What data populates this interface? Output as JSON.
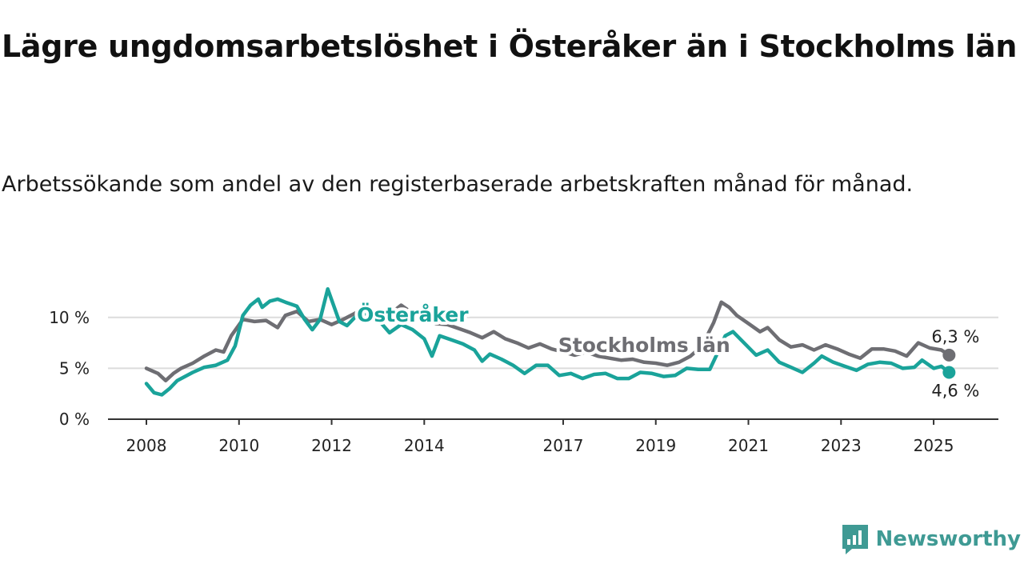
{
  "header": {
    "title": "Lägre ungdomsarbetslöshet i Österåker än i Stockholms län",
    "subtitle": "Arbetssökande som andel av den registerbaserade arbetskraften månad för månad."
  },
  "brand": {
    "name": "Newsworthy",
    "icon": "newsworthy-logo-icon",
    "color": "#3f9a94"
  },
  "chart_data": {
    "type": "line",
    "title": "Lägre ungdomsarbetslöshet i Österåker än i Stockholms län",
    "subtitle": "Arbetssökande som andel av den registerbaserade arbetskraften månad för månad.",
    "xlabel": "",
    "ylabel": "",
    "xlim": [
      "2008-01",
      "2025-12"
    ],
    "ylim": [
      0,
      12.5
    ],
    "x_ticks": [
      {
        "date": "2008-01",
        "label": "2008"
      },
      {
        "date": "2010-01",
        "label": "2010"
      },
      {
        "date": "2012-01",
        "label": "2012"
      },
      {
        "date": "2014-01",
        "label": "2014"
      },
      {
        "date": "2017-01",
        "label": "2017"
      },
      {
        "date": "2019-01",
        "label": "2019"
      },
      {
        "date": "2021-01",
        "label": "2021"
      },
      {
        "date": "2023-01",
        "label": "2023"
      },
      {
        "date": "2025-01",
        "label": "2025"
      }
    ],
    "y_ticks": [
      {
        "value": 0,
        "label": "0 %"
      },
      {
        "value": 5,
        "label": "5 %"
      },
      {
        "value": 10,
        "label": "10 %"
      }
    ],
    "grid": true,
    "legend": "inline labels",
    "series": [
      {
        "name": "Stockholms län",
        "color": "#6e6e73",
        "end_label": "6,3 %",
        "points": [
          {
            "x": "2008-01",
            "y": 5.0
          },
          {
            "x": "2008-04",
            "y": 4.5
          },
          {
            "x": "2008-06",
            "y": 3.8
          },
          {
            "x": "2008-08",
            "y": 4.5
          },
          {
            "x": "2008-10",
            "y": 5.0
          },
          {
            "x": "2009-01",
            "y": 5.5
          },
          {
            "x": "2009-04",
            "y": 6.2
          },
          {
            "x": "2009-07",
            "y": 6.8
          },
          {
            "x": "2009-09",
            "y": 6.6
          },
          {
            "x": "2009-11",
            "y": 8.2
          },
          {
            "x": "2010-02",
            "y": 9.8
          },
          {
            "x": "2010-05",
            "y": 9.6
          },
          {
            "x": "2010-08",
            "y": 9.7
          },
          {
            "x": "2010-11",
            "y": 9.0
          },
          {
            "x": "2011-01",
            "y": 10.2
          },
          {
            "x": "2011-04",
            "y": 10.6
          },
          {
            "x": "2011-07",
            "y": 9.6
          },
          {
            "x": "2011-10",
            "y": 9.8
          },
          {
            "x": "2012-01",
            "y": 9.3
          },
          {
            "x": "2012-04",
            "y": 9.8
          },
          {
            "x": "2012-07",
            "y": 10.4
          },
          {
            "x": "2012-10",
            "y": 11.1
          },
          {
            "x": "2013-01",
            "y": 10.4
          },
          {
            "x": "2013-04",
            "y": 10.3
          },
          {
            "x": "2013-07",
            "y": 11.2
          },
          {
            "x": "2013-10",
            "y": 10.4
          },
          {
            "x": "2014-01",
            "y": 10.0
          },
          {
            "x": "2014-04",
            "y": 9.4
          },
          {
            "x": "2014-07",
            "y": 9.3
          },
          {
            "x": "2014-10",
            "y": 8.9
          },
          {
            "x": "2015-01",
            "y": 8.5
          },
          {
            "x": "2015-04",
            "y": 8.0
          },
          {
            "x": "2015-07",
            "y": 8.6
          },
          {
            "x": "2015-10",
            "y": 7.9
          },
          {
            "x": "2016-01",
            "y": 7.5
          },
          {
            "x": "2016-04",
            "y": 7.0
          },
          {
            "x": "2016-07",
            "y": 7.4
          },
          {
            "x": "2016-10",
            "y": 6.9
          },
          {
            "x": "2017-01",
            "y": 6.6
          },
          {
            "x": "2017-04",
            "y": 6.3
          },
          {
            "x": "2017-07",
            "y": 6.6
          },
          {
            "x": "2017-10",
            "y": 6.2
          },
          {
            "x": "2018-01",
            "y": 6.0
          },
          {
            "x": "2018-04",
            "y": 5.8
          },
          {
            "x": "2018-07",
            "y": 5.9
          },
          {
            "x": "2018-10",
            "y": 5.6
          },
          {
            "x": "2019-01",
            "y": 5.5
          },
          {
            "x": "2019-04",
            "y": 5.3
          },
          {
            "x": "2019-07",
            "y": 5.6
          },
          {
            "x": "2019-10",
            "y": 6.2
          },
          {
            "x": "2020-01",
            "y": 7.2
          },
          {
            "x": "2020-04",
            "y": 9.5
          },
          {
            "x": "2020-06",
            "y": 11.5
          },
          {
            "x": "2020-08",
            "y": 11.0
          },
          {
            "x": "2020-10",
            "y": 10.2
          },
          {
            "x": "2021-01",
            "y": 9.4
          },
          {
            "x": "2021-04",
            "y": 8.6
          },
          {
            "x": "2021-06",
            "y": 9.0
          },
          {
            "x": "2021-09",
            "y": 7.8
          },
          {
            "x": "2021-12",
            "y": 7.1
          },
          {
            "x": "2022-03",
            "y": 7.3
          },
          {
            "x": "2022-06",
            "y": 6.8
          },
          {
            "x": "2022-09",
            "y": 7.3
          },
          {
            "x": "2022-12",
            "y": 6.9
          },
          {
            "x": "2023-03",
            "y": 6.4
          },
          {
            "x": "2023-06",
            "y": 6.0
          },
          {
            "x": "2023-09",
            "y": 6.9
          },
          {
            "x": "2023-12",
            "y": 6.9
          },
          {
            "x": "2024-03",
            "y": 6.7
          },
          {
            "x": "2024-06",
            "y": 6.2
          },
          {
            "x": "2024-09",
            "y": 7.5
          },
          {
            "x": "2024-12",
            "y": 7.0
          },
          {
            "x": "2025-03",
            "y": 6.8
          },
          {
            "x": "2025-05",
            "y": 6.3
          }
        ]
      },
      {
        "name": "Österåker",
        "color": "#1aa39a",
        "end_label": "4,6 %",
        "points": [
          {
            "x": "2008-01",
            "y": 3.5
          },
          {
            "x": "2008-03",
            "y": 2.6
          },
          {
            "x": "2008-05",
            "y": 2.4
          },
          {
            "x": "2008-07",
            "y": 3.0
          },
          {
            "x": "2008-09",
            "y": 3.8
          },
          {
            "x": "2009-01",
            "y": 4.6
          },
          {
            "x": "2009-04",
            "y": 5.1
          },
          {
            "x": "2009-07",
            "y": 5.3
          },
          {
            "x": "2009-10",
            "y": 5.8
          },
          {
            "x": "2009-12",
            "y": 7.2
          },
          {
            "x": "2010-02",
            "y": 10.2
          },
          {
            "x": "2010-04",
            "y": 11.2
          },
          {
            "x": "2010-06",
            "y": 11.8
          },
          {
            "x": "2010-07",
            "y": 11.0
          },
          {
            "x": "2010-09",
            "y": 11.6
          },
          {
            "x": "2010-11",
            "y": 11.8
          },
          {
            "x": "2011-01",
            "y": 11.5
          },
          {
            "x": "2011-04",
            "y": 11.1
          },
          {
            "x": "2011-06",
            "y": 9.8
          },
          {
            "x": "2011-08",
            "y": 8.8
          },
          {
            "x": "2011-10",
            "y": 9.8
          },
          {
            "x": "2011-12",
            "y": 12.8
          },
          {
            "x": "2012-03",
            "y": 9.6
          },
          {
            "x": "2012-05",
            "y": 9.2
          },
          {
            "x": "2012-07",
            "y": 10.0
          },
          {
            "x": "2012-10",
            "y": 10.4
          },
          {
            "x": "2013-01",
            "y": 9.8
          },
          {
            "x": "2013-04",
            "y": 8.5
          },
          {
            "x": "2013-07",
            "y": 9.3
          },
          {
            "x": "2013-10",
            "y": 8.8
          },
          {
            "x": "2014-01",
            "y": 7.9
          },
          {
            "x": "2014-03",
            "y": 6.2
          },
          {
            "x": "2014-05",
            "y": 8.2
          },
          {
            "x": "2014-08",
            "y": 7.8
          },
          {
            "x": "2014-11",
            "y": 7.4
          },
          {
            "x": "2015-02",
            "y": 6.8
          },
          {
            "x": "2015-04",
            "y": 5.7
          },
          {
            "x": "2015-06",
            "y": 6.4
          },
          {
            "x": "2015-09",
            "y": 5.9
          },
          {
            "x": "2015-12",
            "y": 5.3
          },
          {
            "x": "2016-03",
            "y": 4.5
          },
          {
            "x": "2016-06",
            "y": 5.3
          },
          {
            "x": "2016-09",
            "y": 5.3
          },
          {
            "x": "2016-12",
            "y": 4.3
          },
          {
            "x": "2017-03",
            "y": 4.5
          },
          {
            "x": "2017-06",
            "y": 4.0
          },
          {
            "x": "2017-09",
            "y": 4.4
          },
          {
            "x": "2017-12",
            "y": 4.5
          },
          {
            "x": "2018-03",
            "y": 4.0
          },
          {
            "x": "2018-06",
            "y": 4.0
          },
          {
            "x": "2018-09",
            "y": 4.6
          },
          {
            "x": "2018-12",
            "y": 4.5
          },
          {
            "x": "2019-03",
            "y": 4.2
          },
          {
            "x": "2019-06",
            "y": 4.3
          },
          {
            "x": "2019-09",
            "y": 5.0
          },
          {
            "x": "2019-12",
            "y": 4.9
          },
          {
            "x": "2020-03",
            "y": 4.9
          },
          {
            "x": "2020-05",
            "y": 6.5
          },
          {
            "x": "2020-07",
            "y": 8.2
          },
          {
            "x": "2020-09",
            "y": 8.6
          },
          {
            "x": "2021-03",
            "y": 6.3
          },
          {
            "x": "2021-06",
            "y": 6.8
          },
          {
            "x": "2021-09",
            "y": 5.6
          },
          {
            "x": "2021-12",
            "y": 5.1
          },
          {
            "x": "2022-03",
            "y": 4.6
          },
          {
            "x": "2022-06",
            "y": 5.5
          },
          {
            "x": "2022-08",
            "y": 6.2
          },
          {
            "x": "2022-11",
            "y": 5.6
          },
          {
            "x": "2023-02",
            "y": 5.2
          },
          {
            "x": "2023-05",
            "y": 4.8
          },
          {
            "x": "2023-08",
            "y": 5.4
          },
          {
            "x": "2023-11",
            "y": 5.6
          },
          {
            "x": "2024-02",
            "y": 5.5
          },
          {
            "x": "2024-05",
            "y": 5.0
          },
          {
            "x": "2024-08",
            "y": 5.1
          },
          {
            "x": "2024-10",
            "y": 5.8
          },
          {
            "x": "2025-01",
            "y": 5.0
          },
          {
            "x": "2025-03",
            "y": 5.2
          },
          {
            "x": "2025-05",
            "y": 4.6
          }
        ]
      }
    ],
    "annotations": [
      {
        "text": "Österåker",
        "series": "Österåker",
        "at": "2013-10",
        "value": 9.6
      },
      {
        "text": "Stockholms län",
        "series": "Stockholms län",
        "at": "2018-10",
        "value": 6.6
      }
    ]
  }
}
